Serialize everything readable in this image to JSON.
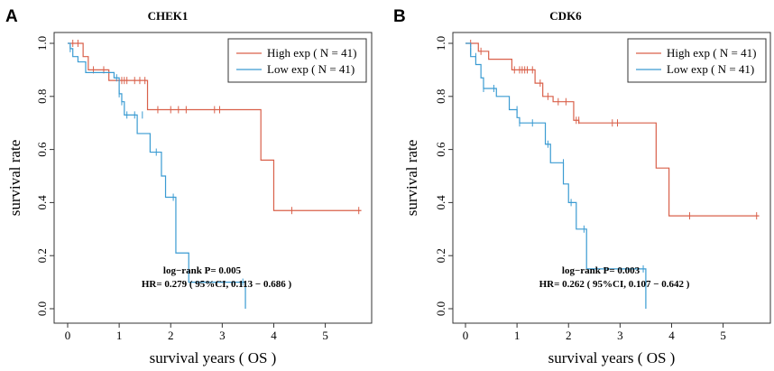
{
  "chart_data": [
    {
      "type": "line",
      "panel_label": "A",
      "title": "CHEK1",
      "xlabel": "survival years ( OS  )",
      "ylabel": "survival rate",
      "xlim": [
        0,
        5.75
      ],
      "ylim": [
        0,
        1.0
      ],
      "xticks": [
        "0",
        "1",
        "2",
        "3",
        "4",
        "5"
      ],
      "yticks": [
        "0.0",
        "0.2",
        "0.4",
        "0.6",
        "0.8",
        "1.0"
      ],
      "legend": [
        "High exp ( N = 41)",
        "Low exp ( N = 41)"
      ],
      "stats": [
        "log−rank P= 0.005",
        "HR= 0.279 ( 95%CI, 0.113 − 0.686 )"
      ],
      "series": [
        {
          "name": "High exp ( N = 41)",
          "color": "#d9604a",
          "steps": [
            [
              0,
              1.0
            ],
            [
              0.3,
              0.95
            ],
            [
              0.4,
              0.9
            ],
            [
              0.8,
              0.86
            ],
            [
              1.55,
              0.75
            ],
            [
              3.75,
              0.56
            ],
            [
              4.0,
              0.37
            ],
            [
              5.7,
              0.37
            ]
          ],
          "censors": [
            [
              0.1,
              1.0
            ],
            [
              0.2,
              1.0
            ],
            [
              0.5,
              0.9
            ],
            [
              0.7,
              0.9
            ],
            [
              1.05,
              0.86
            ],
            [
              1.1,
              0.86
            ],
            [
              1.15,
              0.86
            ],
            [
              1.3,
              0.86
            ],
            [
              1.4,
              0.86
            ],
            [
              1.5,
              0.86
            ],
            [
              1.75,
              0.75
            ],
            [
              2.0,
              0.75
            ],
            [
              2.15,
              0.75
            ],
            [
              2.3,
              0.75
            ],
            [
              2.85,
              0.75
            ],
            [
              2.95,
              0.75
            ],
            [
              4.35,
              0.37
            ],
            [
              5.65,
              0.37
            ]
          ]
        },
        {
          "name": "Low exp ( N = 41)",
          "color": "#3a9bd2",
          "steps": [
            [
              0,
              1.0
            ],
            [
              0.05,
              0.98
            ],
            [
              0.1,
              0.95
            ],
            [
              0.2,
              0.93
            ],
            [
              0.35,
              0.89
            ],
            [
              0.9,
              0.87
            ],
            [
              1.0,
              0.81
            ],
            [
              1.05,
              0.78
            ],
            [
              1.1,
              0.73
            ],
            [
              1.3,
              0.73
            ],
            [
              1.35,
              0.66
            ],
            [
              1.6,
              0.59
            ],
            [
              1.82,
              0.5
            ],
            [
              1.9,
              0.42
            ],
            [
              2.1,
              0.21
            ],
            [
              2.35,
              0.1
            ],
            [
              3.45,
              0.0
            ]
          ],
          "censors": [
            [
              0.05,
              0.98
            ],
            [
              0.95,
              0.87
            ],
            [
              1.0,
              0.81
            ],
            [
              1.05,
              0.78
            ],
            [
              1.15,
              0.73
            ],
            [
              1.3,
              0.73
            ],
            [
              1.45,
              0.73
            ],
            [
              1.72,
              0.59
            ],
            [
              2.05,
              0.42
            ],
            [
              3.4,
              0.1
            ]
          ]
        }
      ]
    },
    {
      "type": "line",
      "panel_label": "B",
      "title": "CDK6",
      "xlabel": "survival years ( OS  )",
      "ylabel": "survival rate",
      "xlim": [
        0,
        5.75
      ],
      "ylim": [
        0,
        1.0
      ],
      "xticks": [
        "0",
        "1",
        "2",
        "3",
        "4",
        "5"
      ],
      "yticks": [
        "0.0",
        "0.2",
        "0.4",
        "0.6",
        "0.8",
        "1.0"
      ],
      "legend": [
        "High exp ( N = 41)",
        "Low exp ( N = 41)"
      ],
      "stats": [
        "log−rank P= 0.003",
        "HR= 0.262 ( 95%CI, 0.107 − 0.642 )"
      ],
      "series": [
        {
          "name": "High exp ( N = 41)",
          "color": "#d9604a",
          "steps": [
            [
              0,
              1.0
            ],
            [
              0.25,
              0.97
            ],
            [
              0.45,
              0.94
            ],
            [
              0.9,
              0.9
            ],
            [
              1.35,
              0.85
            ],
            [
              1.5,
              0.8
            ],
            [
              1.7,
              0.78
            ],
            [
              2.1,
              0.71
            ],
            [
              2.2,
              0.7
            ],
            [
              3.7,
              0.53
            ],
            [
              3.95,
              0.35
            ],
            [
              5.7,
              0.35
            ]
          ],
          "censors": [
            [
              0.1,
              1.0
            ],
            [
              0.3,
              0.97
            ],
            [
              0.95,
              0.9
            ],
            [
              1.05,
              0.9
            ],
            [
              1.1,
              0.9
            ],
            [
              1.15,
              0.9
            ],
            [
              1.2,
              0.9
            ],
            [
              1.3,
              0.9
            ],
            [
              1.45,
              0.85
            ],
            [
              1.6,
              0.8
            ],
            [
              1.8,
              0.78
            ],
            [
              1.95,
              0.78
            ],
            [
              2.15,
              0.71
            ],
            [
              2.2,
              0.71
            ],
            [
              2.85,
              0.7
            ],
            [
              2.95,
              0.7
            ],
            [
              4.35,
              0.35
            ],
            [
              5.65,
              0.35
            ]
          ]
        },
        {
          "name": "Low exp ( N = 41)",
          "color": "#3a9bd2",
          "steps": [
            [
              0,
              1.0
            ],
            [
              0.1,
              0.95
            ],
            [
              0.2,
              0.92
            ],
            [
              0.3,
              0.87
            ],
            [
              0.35,
              0.83
            ],
            [
              0.6,
              0.8
            ],
            [
              0.85,
              0.75
            ],
            [
              1.0,
              0.72
            ],
            [
              1.05,
              0.7
            ],
            [
              1.55,
              0.62
            ],
            [
              1.65,
              0.55
            ],
            [
              1.9,
              0.47
            ],
            [
              2.0,
              0.4
            ],
            [
              2.15,
              0.3
            ],
            [
              2.35,
              0.15
            ],
            [
              3.5,
              0.0
            ]
          ],
          "censors": [
            [
              0.1,
              0.97
            ],
            [
              0.2,
              0.95
            ],
            [
              0.35,
              0.83
            ],
            [
              0.55,
              0.83
            ],
            [
              1.0,
              0.75
            ],
            [
              1.05,
              0.7
            ],
            [
              1.3,
              0.7
            ],
            [
              1.6,
              0.62
            ],
            [
              1.9,
              0.55
            ],
            [
              2.05,
              0.4
            ],
            [
              2.3,
              0.3
            ],
            [
              3.45,
              0.15
            ]
          ]
        }
      ]
    }
  ]
}
